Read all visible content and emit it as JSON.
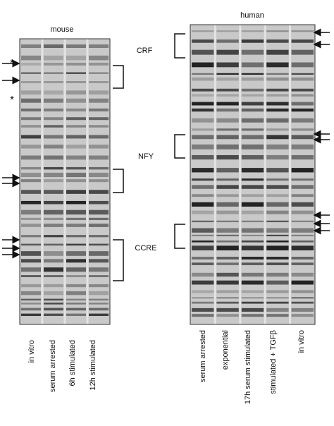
{
  "mouse": {
    "title": "mouse",
    "lanes": [
      "in vitro",
      "serum arrested",
      "6h stimulated",
      "12h stimulated"
    ],
    "markers": [
      "*",
      "*"
    ]
  },
  "human": {
    "title": "human",
    "lanes": [
      "serum arrested",
      "exponential",
      "17h serum  stimulated",
      "stimulated + TGFβ",
      "in vitro"
    ]
  },
  "regions": [
    "CRF",
    "NFY",
    "CCRE"
  ]
}
